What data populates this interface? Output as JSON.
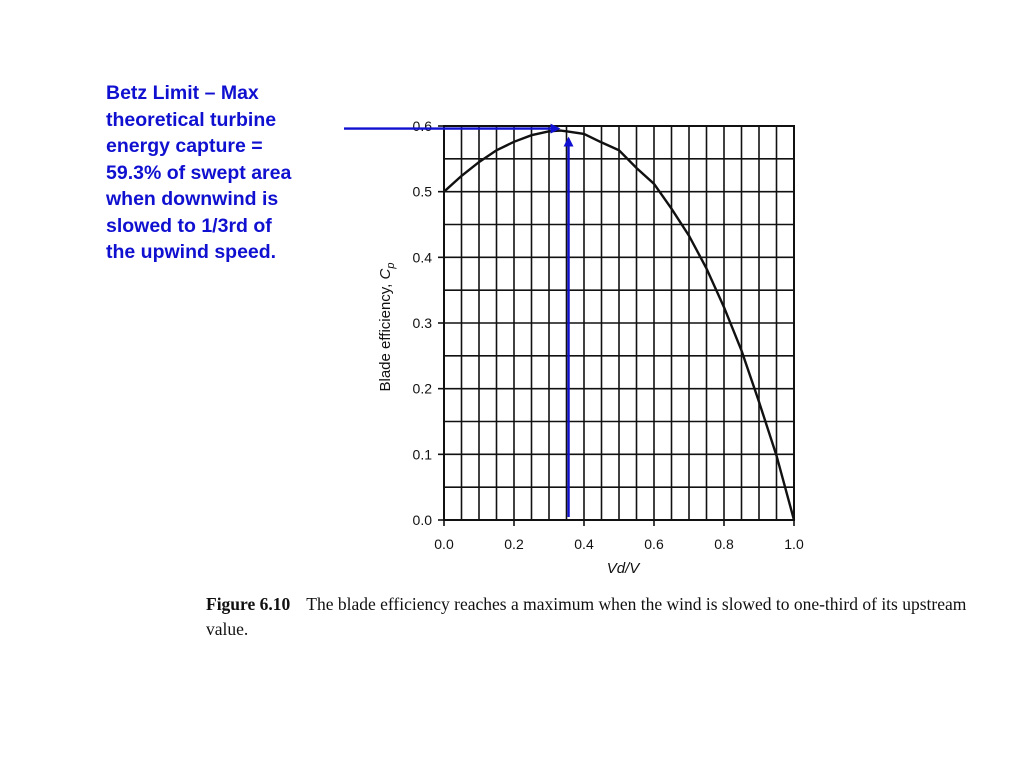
{
  "annotation": {
    "lines": [
      "Betz Limit – Max",
      "theoretical turbine",
      "energy capture =",
      "59.3% of swept area",
      "when downwind is",
      "slowed to 1/3rd of",
      "the upwind speed."
    ],
    "color": "#1010d0"
  },
  "caption": {
    "figure_number": "Figure 6.10",
    "text": "The blade efficiency reaches a maximum when the wind is slowed to one-third of its upstream value."
  },
  "chart_data": {
    "type": "line",
    "xlabel": "Vd/V",
    "ylabel": "Blade efficiency, Cp",
    "xlim": [
      0,
      1
    ],
    "ylim": [
      0,
      0.6
    ],
    "x_ticks": [
      "0.0",
      "0.2",
      "0.4",
      "0.6",
      "0.8",
      "1.0"
    ],
    "y_ticks": [
      "0.0",
      "0.1",
      "0.2",
      "0.3",
      "0.4",
      "0.5",
      "0.6"
    ],
    "grid": true,
    "series": [
      {
        "x": [
          0,
          0.05,
          0.1,
          0.15,
          0.2,
          0.25,
          0.3,
          0.333,
          0.35,
          0.4,
          0.45,
          0.5,
          0.55,
          0.6,
          0.65,
          0.7,
          0.75,
          0.8,
          0.85,
          0.9,
          0.95,
          1.0
        ],
        "values": [
          0.5,
          0.524,
          0.545,
          0.563,
          0.576,
          0.586,
          0.592,
          0.593,
          0.592,
          0.588,
          0.575,
          0.563,
          0.536,
          0.512,
          0.474,
          0.433,
          0.383,
          0.324,
          0.258,
          0.18,
          0.098,
          0.0
        ]
      }
    ],
    "betz_point": {
      "x": 0.333,
      "y": 0.593
    },
    "arrow_color": "#1010d0"
  }
}
